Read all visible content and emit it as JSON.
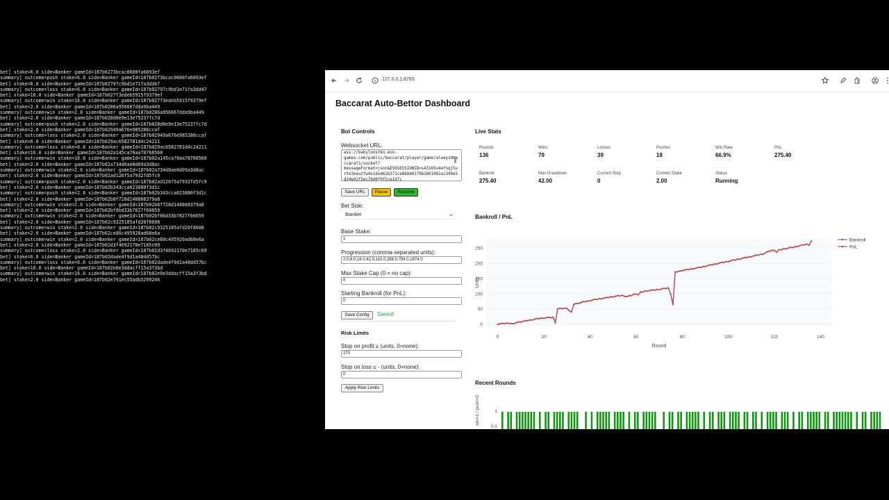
{
  "terminal": {
    "lines": [
      "bet] stake=6.0 side=Banker gameId=187b0273bcac0600fa6093ef",
      "summary] outcome=push stake=6.0 side=Banker gameId=187b0273bcac0600fa6093ef",
      "bet] stake=6.0 side=Banker gameId=187b02797c9bd1e71fa3dd47",
      "summary] outcome=loss stake=6.0 side=Banker gameId=187b02797c9bd1e71fa3dd47",
      "bet] stake=16.0 side=Banker gameId=187b027f3edeb5915f9379ef",
      "summary] outcome=win stake=16.0 side=Banker gameId=187b027f3edeb5915f9379ef",
      "bet] stake=2.0 side=Banker gameId=187b0286a956667dda9ba449",
      "summary] outcome=win stake=2.0 side=Banker gameId=187b0286a956667dda9ba449",
      "bet] stake=2.0 side=Banker gameId=187b028d0e9e13e75237fc7d",
      "summary] outcome=push stake=2.0 side=Banker gameId=187b028d0e9e13e75237fc7d",
      "bet] stake=2.0 side=Banker gameId=187b02949a676e985286ccaf",
      "summary] outcome=loss stake=2.0 side=Banker gameId=187b02949a676e985286ccaf",
      "bet] stake=6.0 side=Banker gameId=187b029ac6582781d4c24211",
      "summary] outcome=loss stake=6.0 side=Banker gameId=187b029ac6582781d4c24211",
      "bet] stake=16.0 side=Banker gameId=187b02a145ca70aa78768560",
      "summary] outcome=win stake=16.0 side=Banker gameId=187b02a145ca70aa78768560",
      "bet] stake=2.0 side=Banker gameId=187b02a734d0ae0d09a3d8ac",
      "summary] outcome=win stake=2.0 side=Banker gameId=187b02a734d0ae0d09a3d8ac",
      "bet] stake=2.0 side=Banker gameId=187b02ad126f5a7932fd5fc9",
      "summary] outcome=push stake=2.0 side=Banker gameId=187b02ad126f5a7932fd5fc9",
      "bet] stake=2.0 side=Banker gameId=187b02b343cca023880f3d1c",
      "summary] outcome=push stake=2.0 side=Banker gameId=187b02b343cca023880f3d1c",
      "bet] stake=2.0 side=Banker gameId=187b02b8f728d148808379a8",
      "summary] outcome=win stake=2.0 side=Banker gameId=187b02b8f728d148808379a8",
      "bet] stake=2.0 side=Banker gameId=187b02bf8bd33b7827f60059",
      "summary] outcome=win stake=2.0 side=Banker gameId=187b02bf8bd33b7827f60059",
      "bet] stake=2.0 side=Banker gameId=187b02c9325185afd20f8608",
      "summary] outcome=win stake=2.0 side=Banker gameId=187b02c9325185afd20f8608",
      "bet] stake=2.0 side=Banker gameId=187b02ce80c495920ad68e6a",
      "summary] outcome=win stake=2.0 side=Banker gameId=187b02ce80c495920ad68e6a",
      "bet] stake=2.0 side=Banker gameId=187b02d3f4692170e7185c09",
      "summary] outcome=loss stake=2.0 side=Banker gameId=187b02d3f4692170e7185c09",
      "bet] stake=6.0 side=Banker gameId=187b02dade4f9d1a48dd57bc",
      "summary] outcome=loss stake=6.0 side=Banker gameId=187b02dade4f9d1a48dd57bc",
      "bet] stake=16.0 side=Banker gameId=187b02e0e3ddacff15a3f3bd",
      "summary] outcome=win stake=16.0 side=Banker gameId=187b02e0e3ddacff15a3f3bd",
      "bet] stake=2.0 side=Banker gameId=187b02e791ec55adb5299246"
    ]
  },
  "browser": {
    "url": "127.0.0.1:8765",
    "icons": {
      "back": "back-arrow-icon",
      "forward": "forward-arrow-icon",
      "reload": "reload-icon",
      "site_info": "site-info-icon",
      "bookmark": "star-icon",
      "extension_a": "pen-icon",
      "extensions": "puzzle-icon",
      "profile": "profile-icon",
      "menu": "kebab-menu-icon"
    }
  },
  "page": {
    "title": "Baccarat Auto-Bettor Dashboard",
    "bot_controls": {
      "title": "Bot Controls",
      "ws_label": "Websocket URL:",
      "ws_value": "wss://babylonstkn.evo-games.com/public/baccarat/player/game/always9baccarat1/socket?messageFormat=json&EVOSESSIONID=s43165o4efnqj5urtk3keuzfw4o16od62b371ce868d017962801081a1399e5d24e92f5ec76d6f0f2ce1d7c",
      "save_url": "Save URL",
      "pause": "Pause",
      "resume": "Resume",
      "bet_side_label": "Bet Side:",
      "bet_side_value": "Banker",
      "base_stake_label": "Base Stake:",
      "base_stake_value": "1",
      "progression_label": "Progression (comma-separated units):",
      "progression_value": "2.0,6.0,16.0,42.0,110.0,288.0,754.0,1974.0",
      "max_stake_label": "Max Stake Cap (0 = no cap):",
      "max_stake_value": "0",
      "start_bankroll_label": "Starting Bankroll (for PnL):",
      "start_bankroll_value": "0",
      "save_config": "Save Config",
      "saved_msg": "Saved!"
    },
    "risk": {
      "title": "Risk Limits",
      "profit_label": "Stop on profit ≥ (units, 0=none):",
      "profit_value": "270",
      "loss_label": "Stop on loss ≤ - (units, 0=none):",
      "loss_value": "0",
      "apply": "Apply Risk Limits"
    },
    "live_stats": {
      "title": "Live Stats",
      "items": [
        {
          "label": "Rounds",
          "value": "136"
        },
        {
          "label": "Wins",
          "value": "79"
        },
        {
          "label": "Losses",
          "value": "39"
        },
        {
          "label": "Pushes",
          "value": "18"
        },
        {
          "label": "Win Rate",
          "value": "66.9%"
        },
        {
          "label": "PnL",
          "value": "275.40"
        },
        {
          "label": "Bankroll",
          "value": "275.40"
        },
        {
          "label": "Max Drawdown",
          "value": "42.00"
        },
        {
          "label": "Current Step",
          "value": "0"
        },
        {
          "label": "Current Stake",
          "value": "2.00"
        },
        {
          "label": "Status",
          "value": "Running"
        }
      ]
    },
    "recent_rounds": {
      "title": "Recent Rounds",
      "y_label": "win=1 / push=0",
      "ticks": [
        "1",
        "0.5"
      ]
    }
  },
  "colors": {
    "bankroll": "#6a6aa8",
    "pnl": "#b94a4a",
    "win_bar": "#0b9a0b",
    "pause_bg": "#f2c200",
    "resume_bg": "#2fb52f",
    "saved": "#3a9a3a"
  },
  "chart_data": {
    "type": "line",
    "title": "Bankroll / PnL",
    "xlabel": "Round",
    "ylabel": "Units",
    "xlim": [
      -5,
      145
    ],
    "ylim": [
      -10,
      282
    ],
    "x_ticks": [
      0,
      20,
      40,
      60,
      80,
      100,
      120,
      140
    ],
    "y_ticks": [
      0,
      50,
      100,
      150,
      200,
      250
    ],
    "legend": "top-right",
    "key_points": [
      [
        0,
        0
      ],
      [
        3,
        2
      ],
      [
        5,
        3
      ],
      [
        7,
        0
      ],
      [
        8,
        5
      ],
      [
        12,
        10
      ],
      [
        16,
        16
      ],
      [
        20,
        20
      ],
      [
        24,
        22
      ],
      [
        25,
        6
      ],
      [
        26,
        50
      ],
      [
        30,
        52
      ],
      [
        31,
        44
      ],
      [
        32,
        38
      ],
      [
        33,
        65
      ],
      [
        38,
        74
      ],
      [
        42,
        80
      ],
      [
        46,
        85
      ],
      [
        50,
        90
      ],
      [
        54,
        94
      ],
      [
        56,
        90
      ],
      [
        58,
        94
      ],
      [
        60,
        100
      ],
      [
        61,
        96
      ],
      [
        62,
        104
      ],
      [
        64,
        108
      ],
      [
        68,
        112
      ],
      [
        72,
        116
      ],
      [
        74,
        118
      ],
      [
        75,
        100
      ],
      [
        76,
        64
      ],
      [
        77,
        170
      ],
      [
        80,
        176
      ],
      [
        85,
        182
      ],
      [
        90,
        190
      ],
      [
        95,
        198
      ],
      [
        100,
        206
      ],
      [
        105,
        214
      ],
      [
        110,
        222
      ],
      [
        115,
        230
      ],
      [
        118,
        240
      ],
      [
        120,
        243
      ],
      [
        121,
        236
      ],
      [
        122,
        243
      ],
      [
        125,
        248
      ],
      [
        128,
        252
      ],
      [
        132,
        259
      ],
      [
        134,
        262
      ],
      [
        135,
        260
      ],
      [
        136,
        272
      ]
    ],
    "series": [
      {
        "name": "Bankroll",
        "color": "#6a6aa8"
      },
      {
        "name": "PnL",
        "color": "#b94a4a"
      }
    ]
  }
}
